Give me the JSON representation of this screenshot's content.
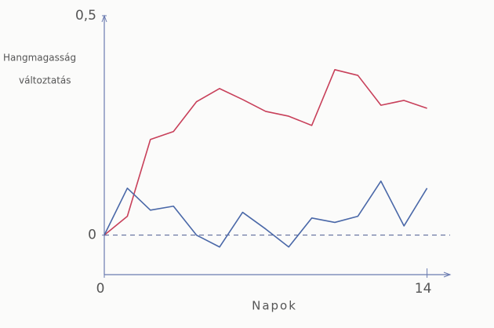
{
  "chart_data": {
    "type": "line",
    "ylabel": [
      "Hangmagasság",
      "változtatás"
    ],
    "xlabel": "Napok",
    "x": [
      0,
      1,
      2,
      3,
      4,
      5,
      6,
      7,
      8,
      9,
      10,
      11,
      12,
      13,
      14
    ],
    "series": [
      {
        "color": "#c8405a",
        "values": [
          0,
          0.043,
          0.218,
          0.236,
          0.304,
          0.334,
          0.309,
          0.282,
          0.271,
          0.25,
          0.377,
          0.364,
          0.296,
          0.307,
          0.289
        ]
      },
      {
        "color": "#4a68a8",
        "values": [
          0,
          0.107,
          0.057,
          0.066,
          0,
          -0.027,
          0.052,
          0.014,
          -0.027,
          0.039,
          0.029,
          0.043,
          0.123,
          0.021,
          0.107
        ]
      }
    ],
    "xlim": [
      0,
      15
    ],
    "ylim": [
      -0.09,
      0.5
    ],
    "xticks": [
      0,
      14
    ],
    "yticks": [
      0,
      {
        "value": 0.5,
        "label": "0,5"
      }
    ],
    "zero_line": true
  }
}
